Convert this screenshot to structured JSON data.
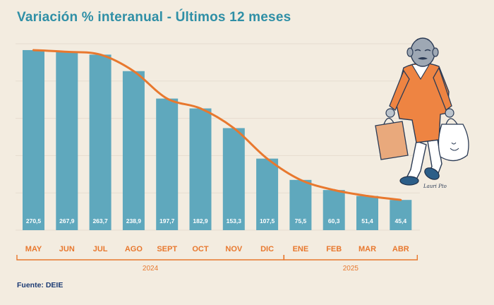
{
  "title": "Variación % interanual - Últimos 12 meses",
  "source": "Fuente: DEIE",
  "colors": {
    "background": "#f3ece0",
    "bar": "#5fa8bd",
    "line": "#e8782e",
    "title": "#2f8fa6",
    "category": "#e8782e",
    "year": "#e8782e",
    "grid": "#e6ddcf"
  },
  "illustration": {
    "name": "elderly-man-with-shopping-bags-illustration",
    "signature": "Lauri Pto"
  },
  "chart_data": {
    "type": "bar",
    "title": "Variación % interanual - Últimos 12 meses",
    "xlabel": "",
    "ylabel": "",
    "categories": [
      "MAY",
      "JUN",
      "JUL",
      "AGO",
      "SEPT",
      "OCT",
      "NOV",
      "DIC",
      "ENE",
      "FEB",
      "MAR",
      "ABR"
    ],
    "values": [
      270.5,
      267.9,
      263.7,
      238.9,
      197.7,
      182.9,
      153.3,
      107.5,
      75.5,
      60.3,
      51.4,
      45.4
    ],
    "value_labels": [
      "270,5",
      "267,9",
      "263,7",
      "238,9",
      "197,7",
      "182,9",
      "153,3",
      "107,5",
      "75,5",
      "60,3",
      "51,4",
      "45,4"
    ],
    "ylim": [
      0,
      280
    ],
    "grid": true,
    "trend_line": true,
    "groups": [
      {
        "label": "2024",
        "from": 0,
        "to": 7
      },
      {
        "label": "2025",
        "from": 8,
        "to": 11
      }
    ]
  }
}
